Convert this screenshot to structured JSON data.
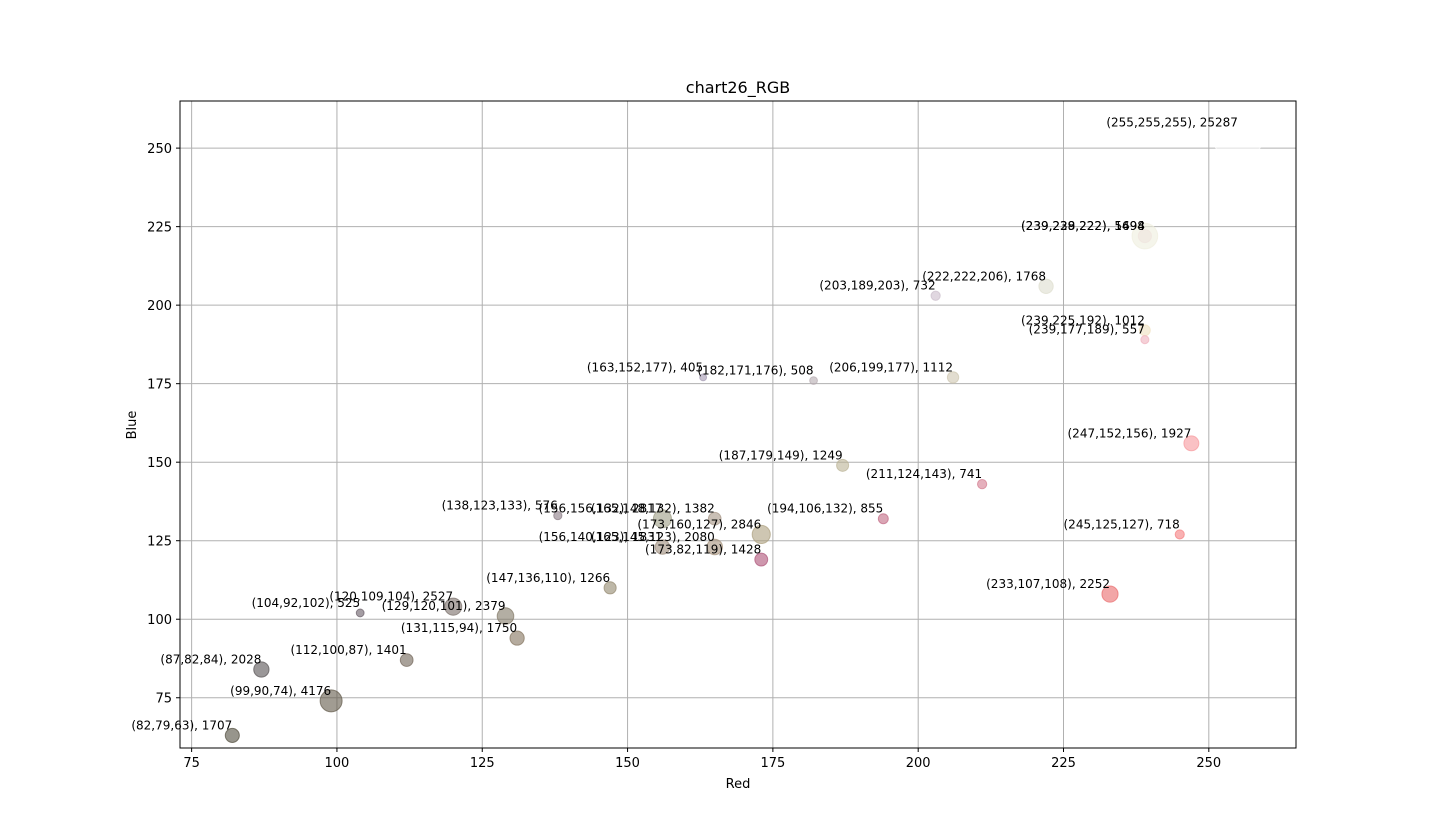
{
  "chart_data": {
    "type": "scatter",
    "title": "chart26_RGB",
    "xlabel": "Red",
    "ylabel": "Blue",
    "xlim": [
      73,
      265
    ],
    "ylim": [
      59,
      265
    ],
    "xticks": [
      75,
      100,
      125,
      150,
      175,
      200,
      225,
      250
    ],
    "yticks": [
      75,
      100,
      125,
      150,
      175,
      200,
      225,
      250
    ],
    "grid": true,
    "points": [
      {
        "x": 255,
        "y": 255,
        "count": 25287,
        "color": "#ffffff",
        "label": "(255,255,255), 25287"
      },
      {
        "x": 239,
        "y": 222,
        "count": 1494,
        "color": "#efe4de",
        "label": "(239,228,222), 1494"
      },
      {
        "x": 239,
        "y": 222,
        "count": 5698,
        "color": "#efeede",
        "label": "(239,239,222), 5698"
      },
      {
        "x": 222,
        "y": 206,
        "count": 1768,
        "color": "#dedece",
        "label": "(222,222,206), 1768"
      },
      {
        "x": 203,
        "y": 203,
        "count": 732,
        "color": "#cbbdcb",
        "label": "(203,189,203), 732"
      },
      {
        "x": 239,
        "y": 192,
        "count": 1012,
        "color": "#efe1c0",
        "label": "(239,225,192), 1012"
      },
      {
        "x": 239,
        "y": 189,
        "count": 557,
        "color": "#efb1bd",
        "label": "(239,177,189), 557"
      },
      {
        "x": 163,
        "y": 177,
        "count": 405,
        "color": "#a398b1",
        "label": "(163,152,177), 405"
      },
      {
        "x": 182,
        "y": 176,
        "count": 508,
        "color": "#b6abb0",
        "label": "(182,171,176), 508"
      },
      {
        "x": 206,
        "y": 177,
        "count": 1112,
        "color": "#cec7b1",
        "label": "(206,199,177), 1112"
      },
      {
        "x": 247,
        "y": 156,
        "count": 1927,
        "color": "#f7989c",
        "label": "(247,152,156), 1927"
      },
      {
        "x": 187,
        "y": 149,
        "count": 1249,
        "color": "#bbb395",
        "label": "(187,179,149), 1249"
      },
      {
        "x": 211,
        "y": 143,
        "count": 741,
        "color": "#d37c8f",
        "label": "(211,124,143), 741"
      },
      {
        "x": 138,
        "y": 133,
        "count": 576,
        "color": "#8a7b85",
        "label": "(138,123,133), 576"
      },
      {
        "x": 156,
        "y": 132,
        "count": 2817,
        "color": "#9c9c84",
        "label": "(156,156,132), 2817"
      },
      {
        "x": 165,
        "y": 132,
        "count": 1382,
        "color": "#a59484",
        "label": "(165,148,132), 1382"
      },
      {
        "x": 194,
        "y": 132,
        "count": 855,
        "color": "#c26a84",
        "label": "(194,106,132), 855"
      },
      {
        "x": 245,
        "y": 127,
        "count": 718,
        "color": "#f57d7f",
        "label": "(245,125,127), 718"
      },
      {
        "x": 173,
        "y": 127,
        "count": 2846,
        "color": "#ada07f",
        "label": "(173,160,127), 2846"
      },
      {
        "x": 156,
        "y": 123,
        "count": 1831,
        "color": "#9c8c7b",
        "label": "(156,140,123), 1831"
      },
      {
        "x": 165,
        "y": 123,
        "count": 2080,
        "color": "#a5917b",
        "label": "(165,145,123), 2080"
      },
      {
        "x": 173,
        "y": 119,
        "count": 1428,
        "color": "#ad5277",
        "label": "(173,82,119), 1428"
      },
      {
        "x": 147,
        "y": 110,
        "count": 1266,
        "color": "#93886e",
        "label": "(147,136,110), 1266"
      },
      {
        "x": 233,
        "y": 108,
        "count": 2252,
        "color": "#e96b6c",
        "label": "(233,107,108), 2252"
      },
      {
        "x": 120,
        "y": 104,
        "count": 2527,
        "color": "#786d68",
        "label": "(120,109,104), 2527"
      },
      {
        "x": 104,
        "y": 102,
        "count": 525,
        "color": "#685c66",
        "label": "(104,92,102), 525"
      },
      {
        "x": 129,
        "y": 101,
        "count": 2379,
        "color": "#817865",
        "label": "(129,120,101), 2379"
      },
      {
        "x": 131,
        "y": 94,
        "count": 1750,
        "color": "#83735e",
        "label": "(131,115,94), 1750"
      },
      {
        "x": 112,
        "y": 87,
        "count": 1401,
        "color": "#706457",
        "label": "(112,100,87), 1401"
      },
      {
        "x": 87,
        "y": 84,
        "count": 2028,
        "color": "#575254",
        "label": "(87,82,84), 2028"
      },
      {
        "x": 99,
        "y": 74,
        "count": 4176,
        "color": "#635a4a",
        "label": "(99,90,74), 4176"
      },
      {
        "x": 82,
        "y": 63,
        "count": 1707,
        "color": "#524f3f",
        "label": "(82,79,63), 1707"
      }
    ]
  }
}
